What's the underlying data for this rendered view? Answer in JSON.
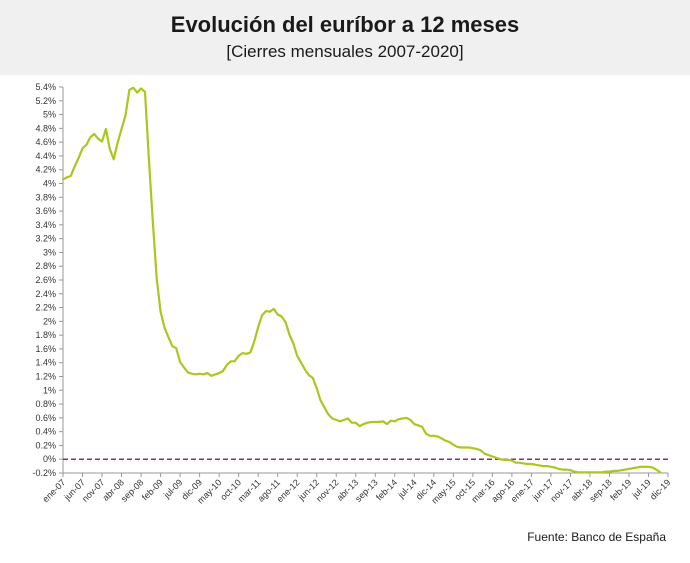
{
  "header": {
    "title": "Evolución del euríbor a 12 meses",
    "subtitle": "[Cierres mensuales 2007-2020]"
  },
  "source": "Fuente: Banco de España",
  "colors": {
    "line": "#a8c820",
    "zero_line": "#8b2c7a",
    "axis": "#999999",
    "header_bg": "#f0f0f0"
  },
  "chart_data": {
    "type": "line",
    "title": "Evolución del euríbor a 12 meses",
    "subtitle": "[Cierres mensuales 2007-2020]",
    "xlabel": "",
    "ylabel": "",
    "ylim": [
      -0.2,
      5.4
    ],
    "grid": false,
    "y_ticks": [
      "-0.2%",
      "0%",
      "0.2%",
      "0.4%",
      "0.6%",
      "0.8%",
      "1%",
      "1.2%",
      "1.4%",
      "1.6%",
      "1.8%",
      "2%",
      "2.2%",
      "2.4%",
      "2.6%",
      "2.8%",
      "3%",
      "3.2%",
      "3.4%",
      "3.6%",
      "3.8%",
      "4%",
      "4.2%",
      "4.4%",
      "4.6%",
      "4.8%",
      "5%",
      "5.2%",
      "5.4%"
    ],
    "x_ticks": [
      "ene-07",
      "jun-07",
      "nov-07",
      "abr-08",
      "sep-08",
      "feb-09",
      "jul-09",
      "dic-09",
      "may-10",
      "oct-10",
      "mar-11",
      "ago-11",
      "ene-12",
      "jun-12",
      "nov-12",
      "abr-13",
      "sep-13",
      "feb-14",
      "jul-14",
      "dic-14",
      "may-15",
      "oct-15",
      "mar-16",
      "ago-16",
      "ene-17",
      "jun-17",
      "nov-17",
      "abr-18",
      "sep-18",
      "feb-19",
      "jul-19",
      "dic-19"
    ],
    "reference_line": {
      "y": 0,
      "style": "dashed"
    },
    "series": [
      {
        "start": "ene-07",
        "frequency": "monthly",
        "values": [
          4.06,
          4.09,
          4.11,
          4.25,
          4.37,
          4.51,
          4.56,
          4.67,
          4.72,
          4.65,
          4.61,
          4.79,
          4.5,
          4.35,
          4.59,
          4.79,
          4.99,
          5.36,
          5.39,
          5.32,
          5.38,
          5.33,
          4.35,
          3.45,
          2.62,
          2.14,
          1.91,
          1.77,
          1.64,
          1.61,
          1.41,
          1.33,
          1.26,
          1.24,
          1.23,
          1.24,
          1.23,
          1.25,
          1.21,
          1.23,
          1.25,
          1.28,
          1.37,
          1.42,
          1.42,
          1.5,
          1.54,
          1.53,
          1.55,
          1.71,
          1.92,
          2.09,
          2.15,
          2.14,
          2.18,
          2.1,
          2.07,
          1.99,
          1.81,
          1.68,
          1.5,
          1.4,
          1.3,
          1.22,
          1.18,
          1.03,
          0.85,
          0.75,
          0.65,
          0.59,
          0.57,
          0.55,
          0.57,
          0.59,
          0.53,
          0.53,
          0.48,
          0.51,
          0.53,
          0.54,
          0.54,
          0.54,
          0.55,
          0.51,
          0.56,
          0.55,
          0.58,
          0.59,
          0.6,
          0.57,
          0.51,
          0.49,
          0.47,
          0.37,
          0.34,
          0.34,
          0.33,
          0.3,
          0.27,
          0.25,
          0.21,
          0.18,
          0.17,
          0.17,
          0.17,
          0.16,
          0.15,
          0.13,
          0.08,
          0.06,
          0.04,
          0.02,
          0.0,
          -0.01,
          -0.01,
          -0.02,
          -0.05,
          -0.05,
          -0.06,
          -0.07,
          -0.07,
          -0.08,
          -0.09,
          -0.1,
          -0.1,
          -0.11,
          -0.12,
          -0.14,
          -0.15,
          -0.15,
          -0.16,
          -0.18,
          -0.19,
          -0.19,
          -0.19,
          -0.19,
          -0.19,
          -0.19,
          -0.19,
          -0.18,
          -0.18,
          -0.17,
          -0.17,
          -0.16,
          -0.15,
          -0.14,
          -0.13,
          -0.12,
          -0.11,
          -0.11,
          -0.11,
          -0.12,
          -0.15,
          -0.19
        ]
      }
    ]
  }
}
